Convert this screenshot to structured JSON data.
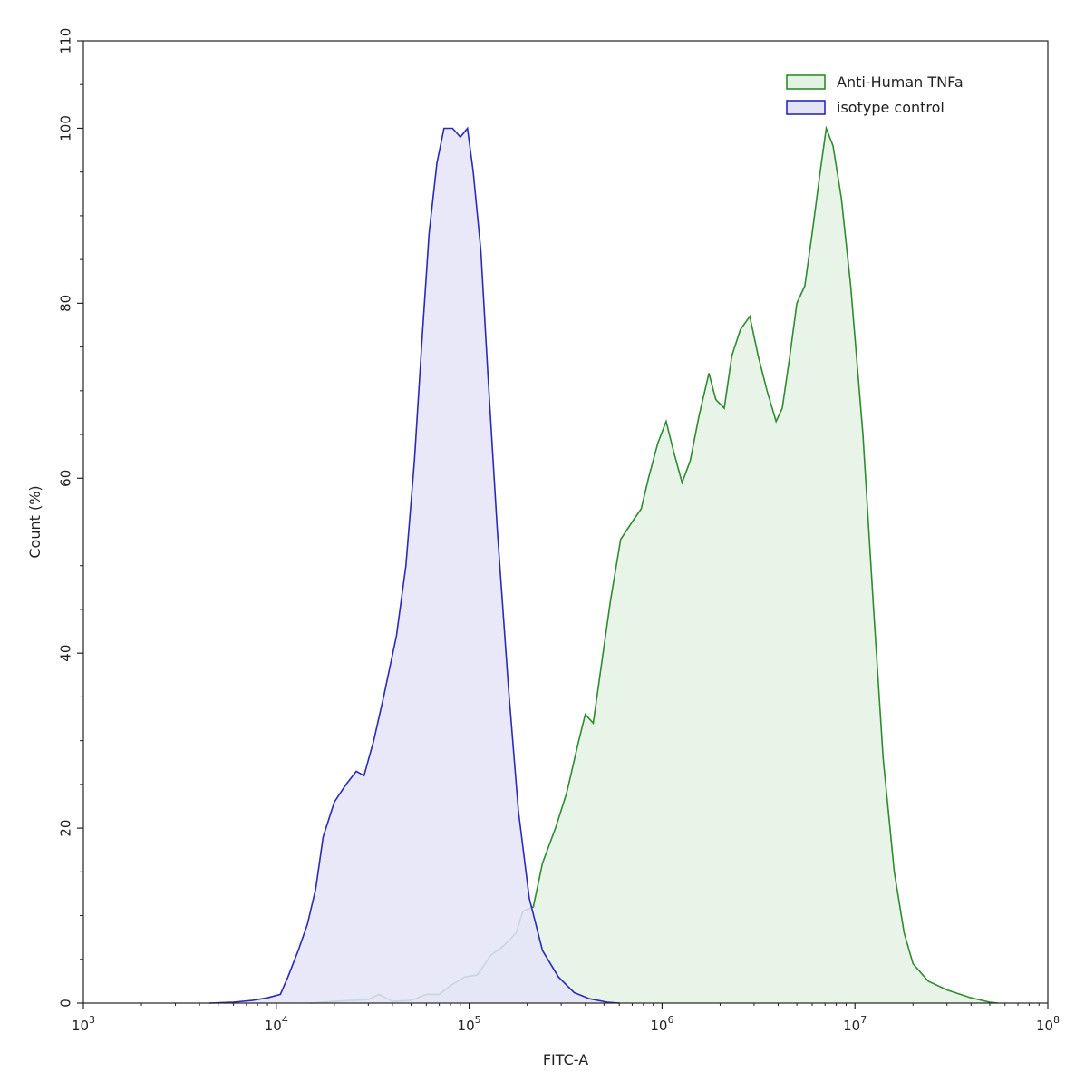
{
  "chart_data": {
    "type": "area",
    "xlabel": "FITC-A",
    "ylabel": "Count  (%)",
    "xscale": "log",
    "xlim": [
      1000,
      100000000
    ],
    "ylim": [
      0,
      110
    ],
    "x_ticks": [
      {
        "base": "10",
        "exp": "3"
      },
      {
        "base": "10",
        "exp": "4"
      },
      {
        "base": "10",
        "exp": "5"
      },
      {
        "base": "10",
        "exp": "6"
      },
      {
        "base": "10",
        "exp": "7"
      },
      {
        "base": "10",
        "exp": "8"
      }
    ],
    "y_ticks": [
      "0",
      "20",
      "40",
      "60",
      "80",
      "100",
      "110"
    ],
    "y_tick_values": [
      0,
      20,
      40,
      60,
      80,
      100,
      110
    ],
    "grid": false,
    "legend": "top-right",
    "series": [
      {
        "name": "Anti-Human TNFa",
        "stroke": "#2e8b2e",
        "fill": "#e3f2e3",
        "points": [
          [
            15000,
            0
          ],
          [
            20000,
            0.2
          ],
          [
            30000,
            0.4
          ],
          [
            34000,
            1.0
          ],
          [
            40000,
            0.2
          ],
          [
            50000,
            0.3
          ],
          [
            60000,
            1.0
          ],
          [
            70000,
            1.0
          ],
          [
            80000,
            2.0
          ],
          [
            95000,
            3.0
          ],
          [
            110000,
            3.2
          ],
          [
            130000,
            5.5
          ],
          [
            150000,
            6.5
          ],
          [
            175000,
            8.0
          ],
          [
            190000,
            10.5
          ],
          [
            215000,
            11.0
          ],
          [
            240000,
            16.0
          ],
          [
            280000,
            20.0
          ],
          [
            320000,
            24.0
          ],
          [
            370000,
            30.0
          ],
          [
            400000,
            33.0
          ],
          [
            440000,
            32.0
          ],
          [
            480000,
            38.0
          ],
          [
            540000,
            46.0
          ],
          [
            610000,
            53.0
          ],
          [
            700000,
            55.0
          ],
          [
            780000,
            56.5
          ],
          [
            850000,
            60.0
          ],
          [
            950000,
            64.0
          ],
          [
            1050000,
            66.5
          ],
          [
            1150000,
            63.0
          ],
          [
            1270000,
            59.5
          ],
          [
            1400000,
            62.0
          ],
          [
            1550000,
            67.0
          ],
          [
            1750000,
            72.0
          ],
          [
            1900000,
            69.0
          ],
          [
            2100000,
            68.0
          ],
          [
            2300000,
            74.0
          ],
          [
            2550000,
            77.0
          ],
          [
            2850000,
            78.5
          ],
          [
            3150000,
            74.0
          ],
          [
            3500000,
            70.0
          ],
          [
            3900000,
            66.5
          ],
          [
            4200000,
            68.0
          ],
          [
            4600000,
            74.0
          ],
          [
            5000000,
            80.0
          ],
          [
            5500000,
            82.0
          ],
          [
            6000000,
            88.0
          ],
          [
            6600000,
            95.0
          ],
          [
            7100000,
            100.0
          ],
          [
            7700000,
            98.0
          ],
          [
            8500000,
            92.0
          ],
          [
            9500000,
            82.0
          ],
          [
            11000000,
            65.0
          ],
          [
            12500000,
            45.0
          ],
          [
            14000000,
            28.0
          ],
          [
            16000000,
            15.0
          ],
          [
            18000000,
            8.0
          ],
          [
            20000000,
            4.5
          ],
          [
            24000000,
            2.5
          ],
          [
            30000000,
            1.5
          ],
          [
            40000000,
            0.6
          ],
          [
            50000000,
            0.1
          ],
          [
            55000000,
            0
          ]
        ]
      },
      {
        "name": "isotype control",
        "stroke": "#2a2ab8",
        "fill": "#e4e4f8",
        "points": [
          [
            4500,
            0
          ],
          [
            6000,
            0.1
          ],
          [
            7500,
            0.3
          ],
          [
            9000,
            0.6
          ],
          [
            10500,
            1.0
          ],
          [
            11500,
            3.0
          ],
          [
            13000,
            6.0
          ],
          [
            14500,
            9.0
          ],
          [
            16000,
            13.0
          ],
          [
            17500,
            19.0
          ],
          [
            20000,
            23.0
          ],
          [
            23000,
            25.0
          ],
          [
            26000,
            26.5
          ],
          [
            28500,
            26.0
          ],
          [
            32000,
            30.0
          ],
          [
            36000,
            35.0
          ],
          [
            42000,
            42.0
          ],
          [
            47000,
            50.0
          ],
          [
            52000,
            62.0
          ],
          [
            57000,
            76.0
          ],
          [
            62000,
            88.0
          ],
          [
            68000,
            96.0
          ],
          [
            74000,
            100.0
          ],
          [
            82000,
            100.0
          ],
          [
            90000,
            99.0
          ],
          [
            98000,
            100.0
          ],
          [
            105000,
            95.0
          ],
          [
            115000,
            86.0
          ],
          [
            125000,
            72.0
          ],
          [
            140000,
            54.0
          ],
          [
            160000,
            36.0
          ],
          [
            180000,
            22.0
          ],
          [
            205000,
            12.0
          ],
          [
            240000,
            6.0
          ],
          [
            290000,
            3.0
          ],
          [
            350000,
            1.2
          ],
          [
            420000,
            0.5
          ],
          [
            520000,
            0.1
          ],
          [
            600000,
            0
          ]
        ]
      }
    ]
  }
}
